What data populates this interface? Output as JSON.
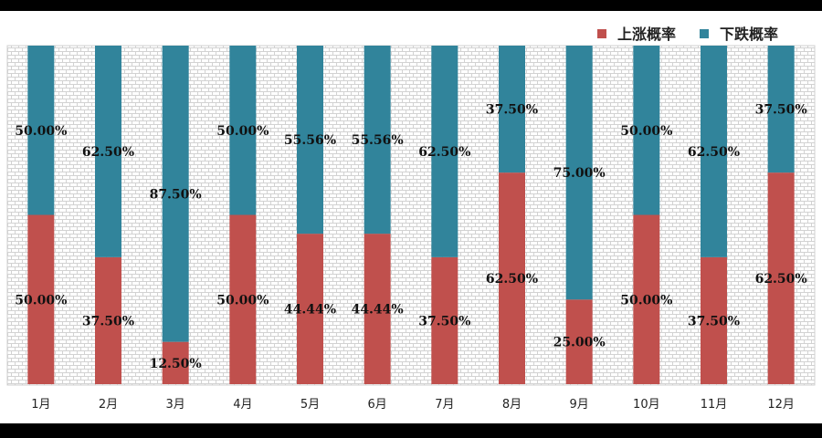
{
  "chart_data": {
    "type": "bar",
    "stacked": true,
    "categories": [
      "1月",
      "2月",
      "3月",
      "4月",
      "5月",
      "6月",
      "7月",
      "8月",
      "9月",
      "10月",
      "11月",
      "12月"
    ],
    "series": [
      {
        "name": "上涨概率",
        "color": "#c0504d",
        "values": [
          50.0,
          37.5,
          12.5,
          50.0,
          44.44,
          44.44,
          37.5,
          62.5,
          25.0,
          50.0,
          37.5,
          62.5
        ],
        "labels": [
          "50.00%",
          "37.50%",
          "12.50%",
          "50.00%",
          "44.44%",
          "44.44%",
          "37.50%",
          "62.50%",
          "25.00%",
          "50.00%",
          "37.50%",
          "62.50%"
        ]
      },
      {
        "name": "下跌概率",
        "color": "#31849b",
        "values": [
          50.0,
          62.5,
          87.5,
          50.0,
          55.56,
          55.56,
          62.5,
          37.5,
          75.0,
          50.0,
          62.5,
          37.5
        ],
        "labels": [
          "50.00%",
          "62.50%",
          "87.50%",
          "50.00%",
          "55.56%",
          "55.56%",
          "62.50%",
          "37.50%",
          "75.00%",
          "50.00%",
          "62.50%",
          "37.50%"
        ]
      }
    ],
    "ylim": [
      0,
      100
    ],
    "legend": "top-right",
    "grid": false
  }
}
